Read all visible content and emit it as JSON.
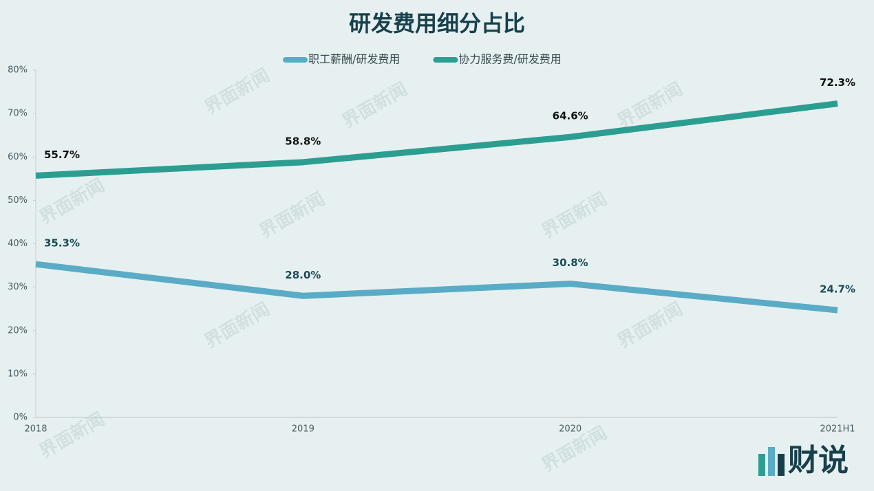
{
  "chart_data": {
    "type": "line",
    "title": "研发费用细分占比",
    "categories": [
      "2018",
      "2019",
      "2020",
      "2021H1"
    ],
    "series": [
      {
        "name": "职工薪酬/研发费用",
        "color": "#5aabc6",
        "values": [
          35.3,
          28.0,
          30.8,
          24.7
        ],
        "value_labels": [
          "35.3%",
          "28.0%",
          "30.8%",
          "24.7%"
        ],
        "label_color": "#1d4a57"
      },
      {
        "name": "协力服务费/研发费用",
        "color": "#2b9e91",
        "values": [
          55.7,
          58.8,
          64.6,
          72.3
        ],
        "value_labels": [
          "55.7%",
          "58.8%",
          "64.6%",
          "72.3%"
        ],
        "label_color": "#111111"
      }
    ],
    "ylim": [
      0,
      80
    ],
    "yticks": [
      {
        "value": 0,
        "label": "0%"
      },
      {
        "value": 10,
        "label": "10%"
      },
      {
        "value": 20,
        "label": "20%"
      },
      {
        "value": 30,
        "label": "30%"
      },
      {
        "value": 40,
        "label": "40%"
      },
      {
        "value": 50,
        "label": "50%"
      },
      {
        "value": 60,
        "label": "60%"
      },
      {
        "value": 70,
        "label": "70%"
      },
      {
        "value": 80,
        "label": "80%"
      }
    ],
    "grid": false,
    "legend": "top"
  },
  "watermark": "界面新闻",
  "logo": "财说"
}
